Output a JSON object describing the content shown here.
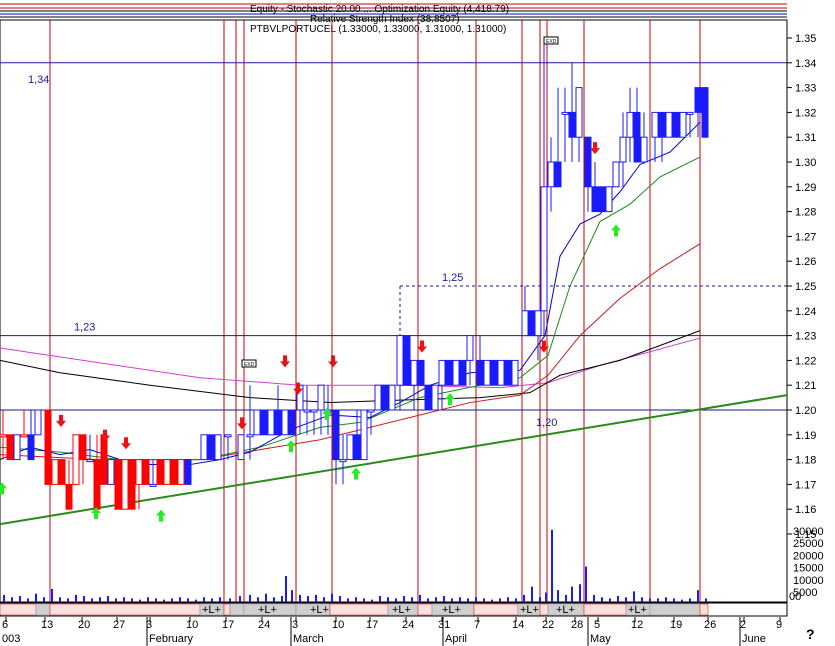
{
  "chart_data": {
    "type": "candlestick",
    "title_lines": [
      "Equity - Stochastic 20.00 ... Optimization Equity (4,418.79)",
      "Relative Strength Index (38.8507)",
      "PTBVLPORTUCEL (1.33000, 1.33000, 1.31000, 1.31000)"
    ],
    "price_axis": {
      "ticks": [
        "1.35",
        "1.34",
        "1.33",
        "1.32",
        "1.31",
        "1.30",
        "1.29",
        "1.28",
        "1.27",
        "1.26",
        "1.25",
        "1.24",
        "1.23",
        "1.22",
        "1.21",
        "1.20",
        "1.19",
        "1.18",
        "1.17",
        "1.16",
        "1.15"
      ],
      "ylim": [
        1.14,
        1.355
      ]
    },
    "volume_axis": {
      "ticks": [
        "30000",
        "25000",
        "20000",
        "15000",
        "10000",
        "5000"
      ]
    },
    "x_ticks": [
      "6",
      "13",
      "20",
      "27",
      "3",
      "10",
      "17",
      "24",
      "3",
      "10",
      "17",
      "24",
      "31",
      "7",
      "14",
      "22",
      "28",
      "5",
      "12",
      "19",
      "26",
      "2",
      "9"
    ],
    "month_labels": [
      "003",
      "February",
      "March",
      "April",
      "May",
      "June"
    ],
    "horizontal_levels": [
      {
        "label": "1,34",
        "value": 1.34
      },
      {
        "label": "1,23",
        "value": 1.23
      },
      {
        "label": "1,20",
        "value": 1.2
      },
      {
        "label": "1,25",
        "value": 1.25
      }
    ],
    "trend_band_labels": [
      "+L+",
      "+L+",
      "+L+",
      "+L+",
      "+L+",
      "+L+",
      "+L+",
      "+L+"
    ],
    "marker_text": "EXD",
    "help_symbol": "?",
    "volume_zero_label": "00",
    "colors": {
      "up": "#1a1aff",
      "down": "#ff0000",
      "signal_line": "#cc0000",
      "trend": "#2a8a1a",
      "ma_magenta": "#d040d0",
      "ma_black": "#000000",
      "ma_blue": "#0000cc",
      "ma_green": "#1a8a1a",
      "ma_red": "#cc1a1a",
      "buy_arrow": "#22ee22",
      "sell_arrow": "#ee1111"
    }
  }
}
